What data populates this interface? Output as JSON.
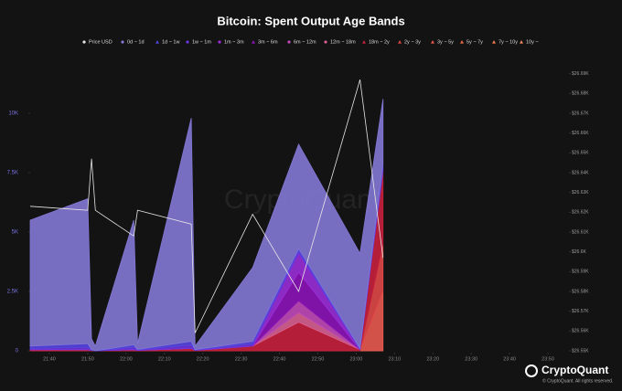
{
  "chart_data": {
    "type": "stacked-area",
    "title": "Bitcoin: Spent Output Age Bands",
    "watermark": "CryptoQuant",
    "brand": "CryptoQuant",
    "copyright": "© CryptoQuant. All rights reserved.",
    "x": [
      "21:35",
      "21:50",
      "21:51",
      "21:52",
      "22:02",
      "22:03",
      "22:17",
      "22:18",
      "22:33",
      "22:45",
      "23:01",
      "23:07"
    ],
    "xlim": [
      "21:35",
      "23:55"
    ],
    "xticks": [
      "21:40",
      "21:50",
      "22:00",
      "22:10",
      "22:20",
      "22:30",
      "22:40",
      "22:50",
      "23:00",
      "23:10",
      "23:20",
      "23:30",
      "23:40",
      "23:50"
    ],
    "ylim": [
      0,
      12000
    ],
    "yticks": [
      0,
      {
        "value": 2500,
        "label": "2.5K"
      },
      {
        "value": 5000,
        "label": "5K"
      },
      {
        "value": 7500,
        "label": "7.5K"
      },
      {
        "value": 10000,
        "label": "10K"
      }
    ],
    "y2lim": [
      26550,
      26694
    ],
    "y2ticks": [
      {
        "value": 26550,
        "label": "$26.55K"
      },
      {
        "value": 26560,
        "label": "$26.56K"
      },
      {
        "value": 26570,
        "label": "$26.57K"
      },
      {
        "value": 26580,
        "label": "$26.58K"
      },
      {
        "value": 26590,
        "label": "$26.59K"
      },
      {
        "value": 26600,
        "label": "$26.6K"
      },
      {
        "value": 26610,
        "label": "$26.61K"
      },
      {
        "value": 26620,
        "label": "$26.62K"
      },
      {
        "value": 26630,
        "label": "$26.63K"
      },
      {
        "value": 26640,
        "label": "$26.64K"
      },
      {
        "value": 26650,
        "label": "$26.65K"
      },
      {
        "value": 26660,
        "label": "$26.66K"
      },
      {
        "value": 26670,
        "label": "$26.67K"
      },
      {
        "value": 26680,
        "label": "$26.68K"
      },
      {
        "value": 26690,
        "label": "$26.69K"
      }
    ],
    "series": [
      {
        "name": "Price USD",
        "color": "#e6e6e6",
        "axis": "y2",
        "values": [
          26623,
          26621,
          26647,
          26621,
          26608,
          26621,
          26614,
          26559,
          26619,
          26580,
          26687,
          26597
        ]
      },
      {
        "name": "0d ~ 1d",
        "color": "#8378d4",
        "values": [
          5300,
          6100,
          450,
          200,
          5250,
          240,
          9400,
          150,
          3100,
          4400,
          4000,
          2700
        ]
      },
      {
        "name": "1d ~ 1w",
        "color": "#5546e0",
        "values": [
          100,
          150,
          20,
          0,
          100,
          20,
          150,
          20,
          100,
          100,
          30,
          200
        ]
      },
      {
        "name": "1w ~ 1m",
        "color": "#6d35dc",
        "values": [
          50,
          100,
          10,
          0,
          100,
          20,
          150,
          10,
          100,
          100,
          20,
          100
        ]
      },
      {
        "name": "1m ~ 3m",
        "color": "#9a2fd6",
        "values": [
          0,
          0,
          0,
          0,
          0,
          0,
          0,
          0,
          0,
          800,
          0,
          0
        ]
      },
      {
        "name": "3m ~ 6m",
        "color": "#8c14b8",
        "values": [
          0,
          0,
          0,
          0,
          0,
          0,
          0,
          0,
          0,
          1200,
          0,
          0
        ]
      },
      {
        "name": "6m ~ 12m",
        "color": "#c04ab8",
        "values": [
          0,
          0,
          0,
          0,
          0,
          0,
          0,
          0,
          0,
          500,
          0,
          0
        ]
      },
      {
        "name": "12m ~ 18m",
        "color": "#d86090",
        "values": [
          0,
          0,
          0,
          0,
          0,
          0,
          0,
          0,
          0,
          400,
          0,
          0
        ]
      },
      {
        "name": "18m ~ 2y",
        "color": "#c8203c",
        "values": [
          50,
          50,
          20,
          0,
          50,
          20,
          100,
          20,
          200,
          1200,
          50,
          3100
        ]
      },
      {
        "name": "2y ~ 3y",
        "color": "#e04848",
        "values": [
          0,
          0,
          0,
          0,
          0,
          0,
          0,
          0,
          0,
          0,
          0,
          2000
        ]
      },
      {
        "name": "3y ~ 5y",
        "color": "#e85a50",
        "values": [
          0,
          0,
          0,
          0,
          0,
          0,
          0,
          0,
          0,
          0,
          0,
          2500
        ]
      },
      {
        "name": "5y ~ 7y",
        "color": "#ee6a44",
        "values": [
          0,
          0,
          0,
          0,
          0,
          0,
          0,
          0,
          0,
          0,
          0,
          0
        ]
      },
      {
        "name": "7y ~ 10y",
        "color": "#f07a50",
        "values": [
          0,
          0,
          0,
          0,
          0,
          0,
          0,
          0,
          0,
          0,
          0,
          0
        ]
      },
      {
        "name": "10y ~",
        "color": "#f08a60",
        "values": [
          0,
          0,
          0,
          0,
          0,
          0,
          0,
          0,
          0,
          0,
          0,
          0
        ]
      }
    ]
  }
}
